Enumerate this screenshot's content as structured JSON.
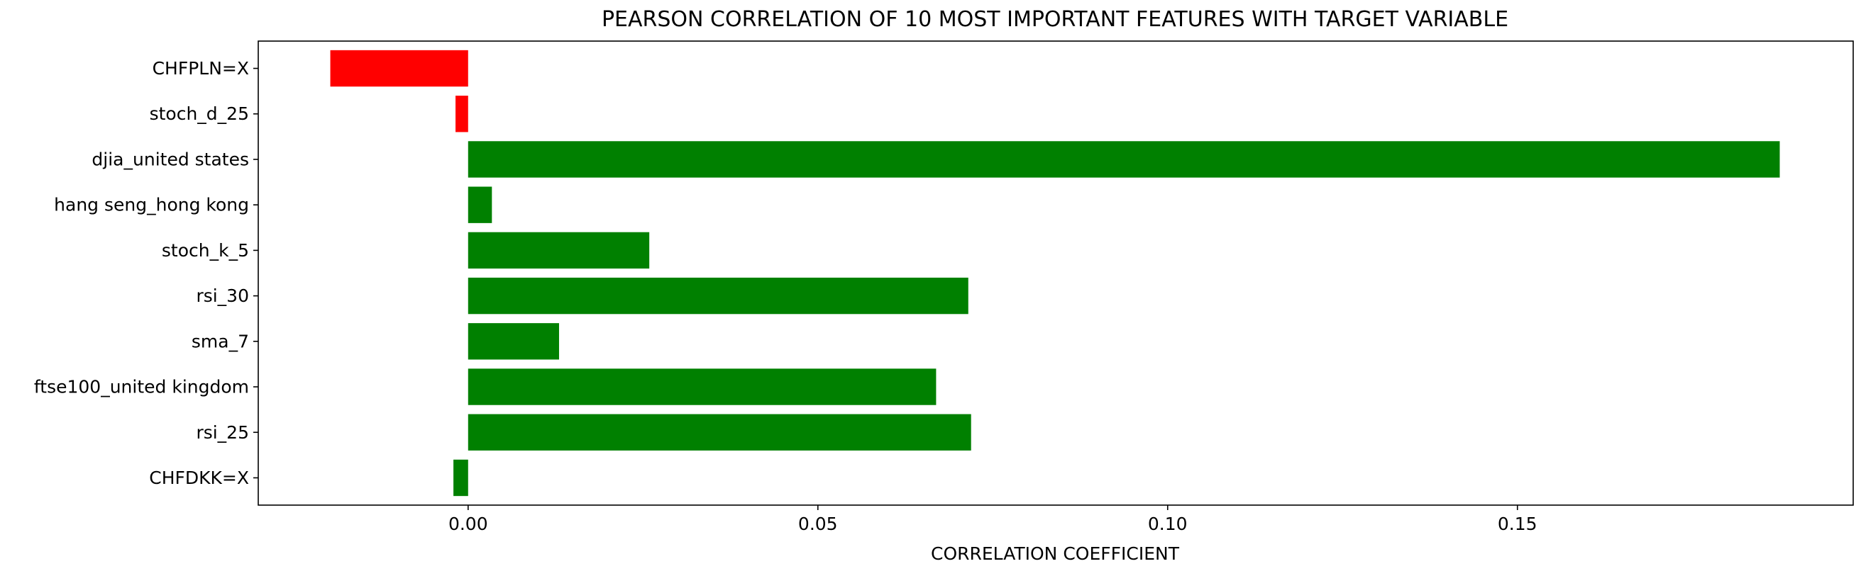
{
  "chart_data": {
    "type": "bar",
    "orientation": "horizontal",
    "title": "PEARSON CORRELATION OF 10 MOST IMPORTANT FEATURES WITH TARGET VARIABLE",
    "xlabel": "CORRELATION COEFFICIENT",
    "ylabel": "",
    "xlim": [
      -0.03,
      0.198
    ],
    "xticks": [
      0.0,
      0.05,
      0.1,
      0.15
    ],
    "xtick_labels": [
      "0.00",
      "0.05",
      "0.10",
      "0.15"
    ],
    "categories": [
      "CHFPLN=X",
      "stoch_d_25",
      "djia_united states",
      "hang seng_hong kong",
      "stoch_k_5",
      "rsi_30",
      "sma_7",
      "ftse100_united kingdom",
      "rsi_25",
      "CHFDKK=X"
    ],
    "values": [
      -0.0197,
      -0.0018,
      0.1875,
      0.0034,
      0.0259,
      0.0715,
      0.013,
      0.0669,
      0.0719,
      -0.0021
    ],
    "bar_colors": [
      "#ff0000",
      "#ff0000",
      "#008000",
      "#008000",
      "#008000",
      "#008000",
      "#008000",
      "#008000",
      "#008000",
      "#008000"
    ],
    "grid": false,
    "legend": "none"
  }
}
